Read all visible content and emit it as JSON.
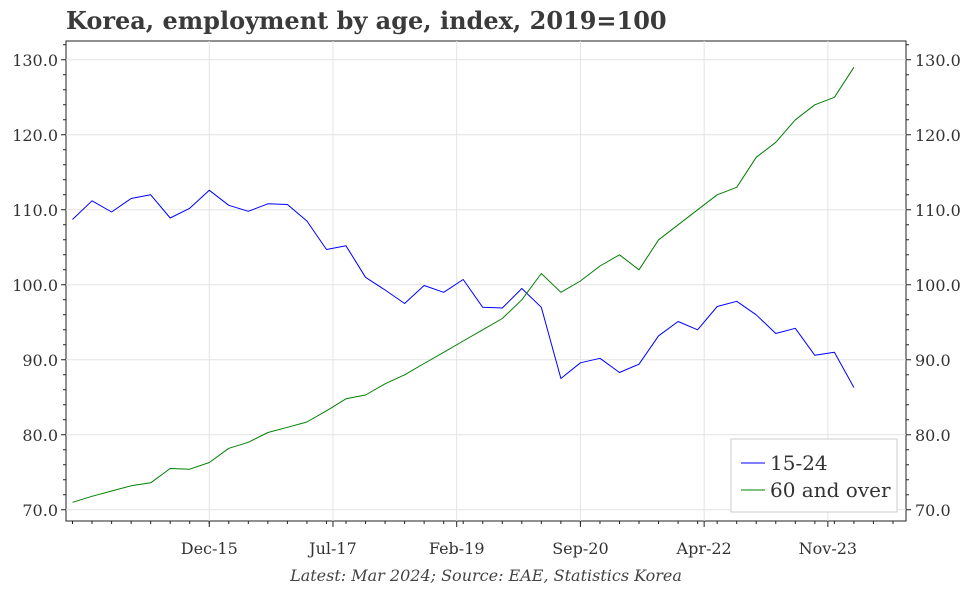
{
  "title": "Korea, employment by age, index, 2019=100",
  "source": "Latest: Mar 2024; Source: EAE, Statistics Korea",
  "chart_data": {
    "type": "line",
    "title": "Korea, employment by age, index, 2019=100",
    "ylim": [
      68.5,
      132.5
    ],
    "y_ticks": [
      "70.0",
      "80.0",
      "90.0",
      "100.0",
      "110.0",
      "120.0",
      "130.0"
    ],
    "y_tick_values": [
      70,
      80,
      90,
      100,
      110,
      120,
      130
    ],
    "x_ticks": [
      "Dec-15",
      "Jul-17",
      "Feb-19",
      "Sep-20",
      "Apr-22",
      "Nov-23"
    ],
    "x_tick_dates": [
      "2015-12",
      "2017-07",
      "2019-02",
      "2020-09",
      "2022-04",
      "2023-11"
    ],
    "x_range": [
      "2014-02",
      "2024-11"
    ],
    "grid": true,
    "legend_position": "bottom-right",
    "colors": {
      "15-24": "#0000ff",
      "60 and over": "#008000"
    },
    "series": [
      {
        "name": "15-24",
        "color": "#0000ff",
        "x": [
          "2014-03",
          "2014-06",
          "2014-09",
          "2014-12",
          "2015-03",
          "2015-06",
          "2015-09",
          "2015-12",
          "2016-03",
          "2016-06",
          "2016-09",
          "2016-12",
          "2017-03",
          "2017-06",
          "2017-09",
          "2017-12",
          "2018-03",
          "2018-06",
          "2018-09",
          "2018-12",
          "2019-03",
          "2019-06",
          "2019-09",
          "2019-12",
          "2020-03",
          "2020-06",
          "2020-09",
          "2020-12",
          "2021-03",
          "2021-06",
          "2021-09",
          "2021-12",
          "2022-03",
          "2022-06",
          "2022-09",
          "2022-12",
          "2023-03",
          "2023-06",
          "2023-09",
          "2023-12",
          "2024-03"
        ],
        "values": [
          108.7,
          111.2,
          109.7,
          111.5,
          112.0,
          108.9,
          110.2,
          112.6,
          110.6,
          109.8,
          110.8,
          110.7,
          108.5,
          104.7,
          105.2,
          101.0,
          99.3,
          97.5,
          99.9,
          99.0,
          100.7,
          97.0,
          96.9,
          99.5,
          97.0,
          87.5,
          89.6,
          90.2,
          88.3,
          89.4,
          93.2,
          95.1,
          94.0,
          97.1,
          97.8,
          96.0,
          93.5,
          94.2,
          90.6,
          91.0,
          86.3
        ]
      },
      {
        "name": "60 and over",
        "color": "#008000",
        "x": [
          "2014-03",
          "2014-06",
          "2014-09",
          "2014-12",
          "2015-03",
          "2015-06",
          "2015-09",
          "2015-12",
          "2016-03",
          "2016-06",
          "2016-09",
          "2016-12",
          "2017-03",
          "2017-06",
          "2017-09",
          "2017-12",
          "2018-03",
          "2018-06",
          "2018-09",
          "2018-12",
          "2019-03",
          "2019-06",
          "2019-09",
          "2019-12",
          "2020-03",
          "2020-06",
          "2020-09",
          "2020-12",
          "2021-03",
          "2021-06",
          "2021-09",
          "2021-12",
          "2022-03",
          "2022-06",
          "2022-09",
          "2022-12",
          "2023-03",
          "2023-06",
          "2023-09",
          "2023-12",
          "2024-03"
        ],
        "values": [
          71.0,
          71.8,
          72.5,
          73.2,
          73.6,
          75.5,
          75.4,
          76.3,
          78.2,
          79.0,
          80.3,
          81.0,
          81.7,
          83.2,
          84.8,
          85.3,
          86.8,
          88.0,
          89.5,
          91.0,
          92.5,
          94.0,
          95.5,
          98.0,
          101.5,
          99.0,
          100.5,
          102.5,
          104.0,
          102.0,
          106.0,
          108.0,
          110.0,
          112.0,
          113.0,
          117.0,
          119.0,
          122.0,
          124.0,
          125.0,
          129.0
        ]
      }
    ]
  }
}
